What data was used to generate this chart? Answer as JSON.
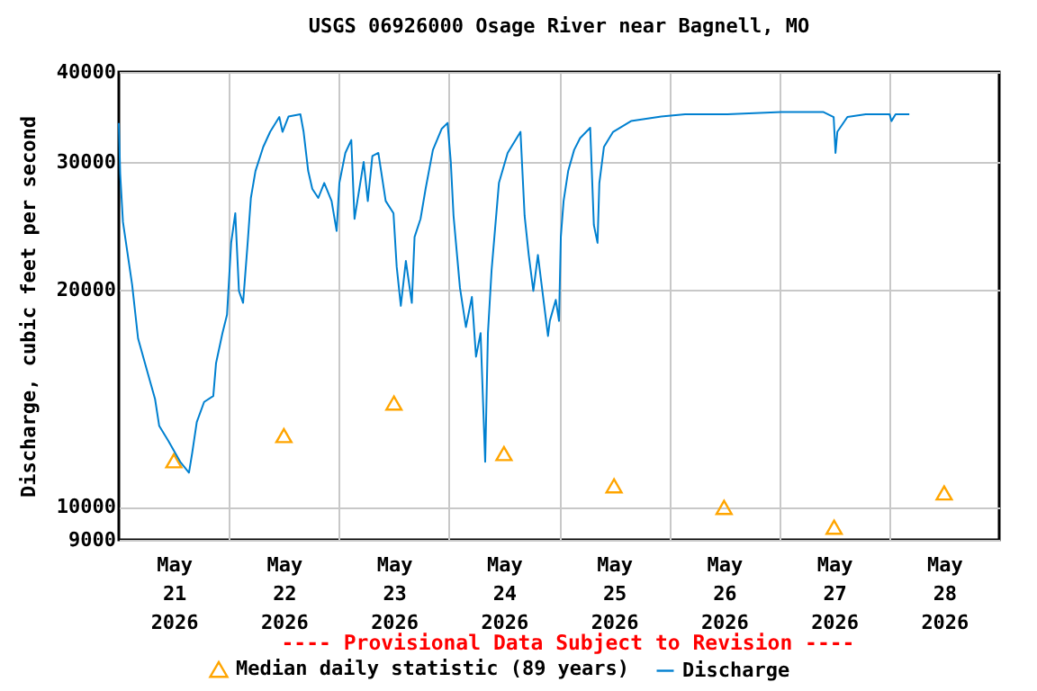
{
  "chart_data": {
    "type": "line",
    "title": "USGS 06926000 Osage River near Bagnell, MO",
    "ylabel": "Discharge, cubic feet per second",
    "annotations": [
      "---- Provisional Data Subject to Revision ----"
    ],
    "xlim": [
      "2026-05-21T00:00",
      "2026-05-29T00:00"
    ],
    "xticks": [
      {
        "value": "2026-05-21T12:00",
        "label": "May 21 2026"
      },
      {
        "value": "2026-05-22T00:00",
        "label": null
      },
      {
        "value": "2026-05-22T12:00",
        "label": "May 22 2026"
      },
      {
        "value": "2026-05-23T00:00",
        "label": null
      },
      {
        "value": "2026-05-23T12:00",
        "label": "May 23 2026"
      },
      {
        "value": "2026-05-24T00:00",
        "label": null
      },
      {
        "value": "2026-05-24T12:00",
        "label": "May 24 2026"
      },
      {
        "value": "2026-05-25T00:00",
        "label": null
      },
      {
        "value": "2026-05-25T12:00",
        "label": "May 25 2026"
      },
      {
        "value": "2026-05-26T00:00",
        "label": null
      },
      {
        "value": "2026-05-26T12:00",
        "label": "May 26 2026"
      },
      {
        "value": "2026-05-27T00:00",
        "label": null
      },
      {
        "value": "2026-05-27T12:00",
        "label": "May 27 2026"
      },
      {
        "value": "2026-05-28T00:00",
        "label": null
      },
      {
        "value": "2026-05-28T12:00",
        "label": "May 28 2026"
      }
    ],
    "ylim": [
      9000,
      40000
    ],
    "yticks": [
      9000,
      10000,
      20000,
      30000,
      40000
    ],
    "log": "y",
    "grid": true,
    "legend": "bottom",
    "series": [
      {
        "name": "Median daily statistic (89 years)",
        "type": "scatter",
        "marker": "triangle",
        "color": "#ffa500",
        "x": [
          "2026-05-21T12:00",
          "2026-05-22T12:00",
          "2026-05-23T12:00",
          "2026-05-24T12:00",
          "2026-05-25T12:00",
          "2026-05-26T12:00",
          "2026-05-27T12:00",
          "2026-05-28T12:00"
        ],
        "values": [
          11580,
          12550,
          13920,
          11850,
          10690,
          9980,
          9370,
          10450
        ]
      },
      {
        "name": "Discharge",
        "marker": "none",
        "color": "#0080d0",
        "x": [
          "2026-05-21T00:00",
          "2026-05-21T00:18",
          "2026-05-21T00:54",
          "2026-05-21T02:54",
          "2026-05-21T04:12",
          "2026-05-21T06:12",
          "2026-05-21T07:54",
          "2026-05-21T08:48",
          "2026-05-21T10:48",
          "2026-05-21T13:24",
          "2026-05-21T15:18",
          "2026-05-21T16:00",
          "2026-05-21T17:00",
          "2026-05-21T18:36",
          "2026-05-21T20:36",
          "2026-05-21T21:12",
          "2026-05-21T22:36",
          "2026-05-21T23:36",
          "2026-05-22T00:30",
          "2026-05-22T01:24",
          "2026-05-22T02:12",
          "2026-05-22T03:06",
          "2026-05-22T04:06",
          "2026-05-22T04:48",
          "2026-05-22T05:48",
          "2026-05-22T07:30",
          "2026-05-22T09:00",
          "2026-05-22T11:00",
          "2026-05-22T11:42",
          "2026-05-22T13:00",
          "2026-05-22T15:36",
          "2026-05-22T16:18",
          "2026-05-22T17:18",
          "2026-05-22T18:12",
          "2026-05-22T19:30",
          "2026-05-22T20:48",
          "2026-05-22T22:24",
          "2026-05-22T23:30",
          "2026-05-23T00:06",
          "2026-05-23T01:24",
          "2026-05-23T02:42",
          "2026-05-23T03:24",
          "2026-05-23T05:24",
          "2026-05-23T06:18",
          "2026-05-23T07:18",
          "2026-05-23T08:36",
          "2026-05-23T10:12",
          "2026-05-23T11:54",
          "2026-05-23T12:36",
          "2026-05-23T13:30",
          "2026-05-23T14:36",
          "2026-05-23T15:54",
          "2026-05-23T16:30",
          "2026-05-23T17:48",
          "2026-05-23T18:54",
          "2026-05-23T20:30",
          "2026-05-23T22:24",
          "2026-05-23T23:42",
          "2026-05-24T00:24",
          "2026-05-24T01:00",
          "2026-05-24T02:24",
          "2026-05-24T03:42",
          "2026-05-24T05:00",
          "2026-05-24T05:54",
          "2026-05-24T06:54",
          "2026-05-24T07:54",
          "2026-05-24T08:30",
          "2026-05-24T09:18",
          "2026-05-24T10:54",
          "2026-05-24T12:48",
          "2026-05-24T15:36",
          "2026-05-24T16:30",
          "2026-05-24T17:24",
          "2026-05-24T18:24",
          "2026-05-24T19:24",
          "2026-05-24T20:42",
          "2026-05-24T21:36",
          "2026-05-24T22:00",
          "2026-05-24T23:18",
          "2026-05-25T00:00",
          "2026-05-25T00:24",
          "2026-05-25T01:00",
          "2026-05-25T02:00",
          "2026-05-25T03:18",
          "2026-05-25T04:36",
          "2026-05-25T06:48",
          "2026-05-25T07:36",
          "2026-05-25T08:24",
          "2026-05-25T08:48",
          "2026-05-25T09:48",
          "2026-05-25T11:48",
          "2026-05-25T15:42",
          "2026-05-25T22:18",
          "2026-05-26T03:30",
          "2026-05-26T12:42",
          "2026-05-27T00:30",
          "2026-05-27T09:42",
          "2026-05-27T11:54",
          "2026-05-27T12:18",
          "2026-05-27T12:42",
          "2026-05-27T14:54",
          "2026-05-27T18:54",
          "2026-05-28T00:06",
          "2026-05-28T00:30",
          "2026-05-28T01:24",
          "2026-05-28T04:24"
        ],
        "values": [
          34000,
          28900,
          24800,
          20300,
          17100,
          15400,
          14100,
          12950,
          12340,
          11540,
          11150,
          11870,
          13100,
          13970,
          14240,
          15800,
          17400,
          18450,
          23200,
          25500,
          19900,
          19160,
          23200,
          26770,
          29170,
          31500,
          33050,
          34650,
          33050,
          34700,
          34950,
          33050,
          29170,
          27550,
          26770,
          28080,
          26510,
          24100,
          28080,
          30900,
          32200,
          25040,
          30030,
          26510,
          30600,
          30900,
          26510,
          25500,
          21500,
          18980,
          21900,
          19160,
          23640,
          25040,
          27550,
          31200,
          33360,
          34000,
          30030,
          25280,
          20100,
          17740,
          19520,
          16140,
          17400,
          11540,
          17400,
          21280,
          28080,
          30900,
          33050,
          25280,
          22320,
          19900,
          22320,
          19160,
          17240,
          18090,
          19340,
          18090,
          23640,
          26510,
          29170,
          31200,
          32400,
          33480,
          24560,
          23200,
          28080,
          31500,
          33050,
          34200,
          34700,
          34950,
          34950,
          35200,
          35200,
          34650,
          30900,
          33050,
          34650,
          34950,
          34950,
          34200,
          34950,
          34950
        ]
      }
    ]
  }
}
